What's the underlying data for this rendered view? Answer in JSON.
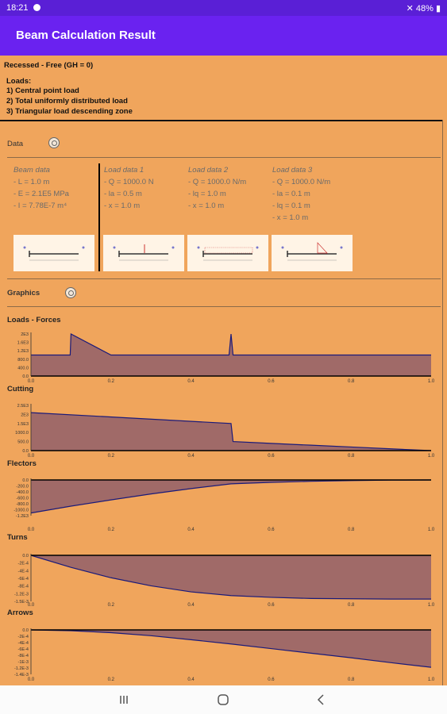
{
  "status_bar": {
    "time": "18:21",
    "battery": "48%"
  },
  "app_bar": {
    "title": "Beam Calculation Result"
  },
  "summary": {
    "case": "Recessed - Free (GH = 0)",
    "loads_heading": "Loads:",
    "loads": [
      "1) Central point load",
      "2) Total uniformly distributed load",
      "3) Triangular load descending zone"
    ]
  },
  "data_section": {
    "title": "Data",
    "zoom_icon": "zoom-icon"
  },
  "beam_data": {
    "title": "Beam data",
    "lines": [
      "- L = 1.0 m",
      "- E = 2.1E5 MPa",
      "- I = 7.78E-7 m⁴"
    ]
  },
  "load_data": [
    {
      "title": "Load data 1",
      "lines": [
        "- Q = 1000.0 N",
        "- la = 0.5 m",
        "- x = 1.0 m"
      ]
    },
    {
      "title": "Load data 2",
      "lines": [
        "- Q = 1000.0 N/m",
        "- lq = 1.0 m",
        "- x = 1.0 m"
      ]
    },
    {
      "title": "Load data 3",
      "lines": [
        "- Q = 1000.0 N/m",
        "- la = 0.1 m",
        "- lq = 0.1 m",
        "- x = 1.0 m"
      ]
    }
  ],
  "graphics_section": {
    "title": "Graphics"
  },
  "colors": {
    "fill": "#a06a68",
    "line": "#1a1a7a",
    "background": "#f0a55c",
    "accent": "#6a22f0"
  },
  "chart_data": [
    {
      "type": "area",
      "title": "Loads - Forces",
      "x_ticks": [
        "0.0",
        "0.2",
        "0.4",
        "0.6",
        "0.8",
        "1.0"
      ],
      "y_ticks": [
        "2E3",
        "1.6E3",
        "1.2E3",
        "800.0",
        "400.0",
        "0.0"
      ],
      "ylim": [
        0,
        2000
      ],
      "x": [
        0,
        0.098,
        0.1,
        0.2,
        0.495,
        0.5,
        0.505,
        1.0
      ],
      "y": [
        1000,
        1000,
        2000,
        1000,
        1000,
        2000,
        1000,
        1000
      ]
    },
    {
      "type": "area",
      "title": "Cutting",
      "x_ticks": [
        "0.0",
        "0.2",
        "0.4",
        "0.6",
        "0.8",
        "1.0"
      ],
      "y_ticks": [
        "2.5E3",
        "2E3",
        "1.5E3",
        "1000.0",
        "500.0",
        "0.0"
      ],
      "ylim": [
        0,
        2500
      ],
      "x": [
        0,
        0.5,
        0.505,
        0.6,
        0.7,
        0.8,
        0.9,
        1.0
      ],
      "y": [
        2100,
        1500,
        500,
        400,
        300,
        200,
        100,
        0
      ]
    },
    {
      "type": "area",
      "title": "Flectors",
      "x_ticks": [
        "0.0",
        "0.2",
        "0.4",
        "0.6",
        "0.8",
        "1.0"
      ],
      "y_ticks": [
        "0.0",
        "-200.0",
        "-400.0",
        "-600.0",
        "-800.0",
        "-1000.0",
        "-1.2E3"
      ],
      "ylim": [
        -1200,
        0
      ],
      "x": [
        0,
        0.1,
        0.2,
        0.3,
        0.4,
        0.5,
        0.6,
        0.7,
        0.8,
        0.9,
        1.0
      ],
      "y": [
        -1110,
        -880,
        -670,
        -470,
        -290,
        -130,
        -80,
        -45,
        -20,
        -5,
        0
      ]
    },
    {
      "type": "area",
      "title": "Turns",
      "x_ticks": [
        "0.0",
        "0.2",
        "0.4",
        "0.6",
        "0.8",
        "1.0"
      ],
      "y_ticks": [
        "0.0",
        "-2E-4",
        "-4E-4",
        "-6E-4",
        "-8E-4",
        "-1.2E-3",
        "-1.5E-3"
      ],
      "ylim": [
        -0.0016,
        0
      ],
      "x": [
        0,
        0.1,
        0.2,
        0.3,
        0.4,
        0.5,
        0.6,
        0.7,
        0.8,
        0.9,
        1.0
      ],
      "y": [
        0,
        -0.00042,
        -0.00078,
        -0.00106,
        -0.00127,
        -0.0014,
        -0.00146,
        -0.0015,
        -0.00151,
        -0.00152,
        -0.00152
      ]
    },
    {
      "type": "area",
      "title": "Arrows",
      "x_ticks": [
        "0.0",
        "0.2",
        "0.4",
        "0.6",
        "0.8",
        "1.0"
      ],
      "y_ticks": [
        "0.0",
        "-2E-4",
        "-4E-4",
        "-6E-4",
        "-8E-4",
        "-1E-3",
        "-1.2E-3",
        "-1.4E-3"
      ],
      "ylim": [
        -0.00145,
        0
      ],
      "x": [
        0,
        0.1,
        0.2,
        0.3,
        0.4,
        0.5,
        0.6,
        0.7,
        0.8,
        0.9,
        1.0
      ],
      "y": [
        0,
        -2.5e-05,
        -9e-05,
        -0.00019,
        -0.00032,
        -0.00046,
        -0.00061,
        -0.00076,
        -0.00091,
        -0.00107,
        -0.00122
      ]
    }
  ]
}
